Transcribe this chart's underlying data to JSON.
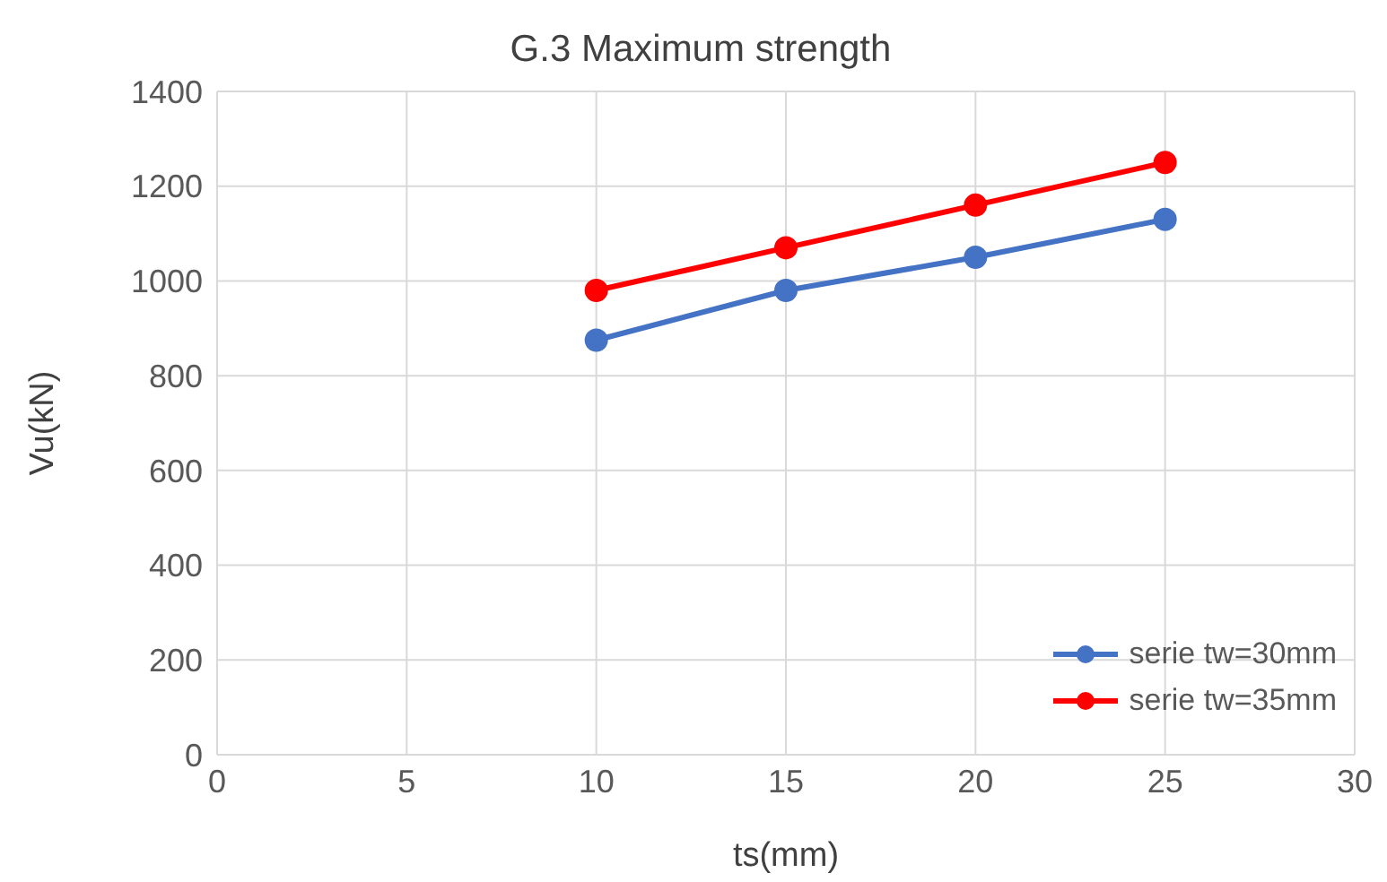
{
  "chart_data": {
    "type": "line",
    "title": "G.3 Maximum strength",
    "xlabel": "ts(mm)",
    "ylabel": "Vu(kN)",
    "x": [
      10,
      15,
      20,
      25
    ],
    "series": [
      {
        "name": "serie tw=30mm",
        "color": "#4472c4",
        "values": [
          875,
          980,
          1050,
          1130
        ]
      },
      {
        "name": "serie tw=35mm",
        "color": "#ff0000",
        "values": [
          980,
          1070,
          1160,
          1250
        ]
      }
    ],
    "xlim": [
      0,
      30
    ],
    "xticks": [
      0,
      5,
      10,
      15,
      20,
      25,
      30
    ],
    "ylim": [
      0,
      1400
    ],
    "yticks": [
      0,
      200,
      400,
      600,
      800,
      1000,
      1200,
      1400
    ],
    "grid": true,
    "legend": "bottom right",
    "marker": "circle",
    "line_style": "solid"
  }
}
